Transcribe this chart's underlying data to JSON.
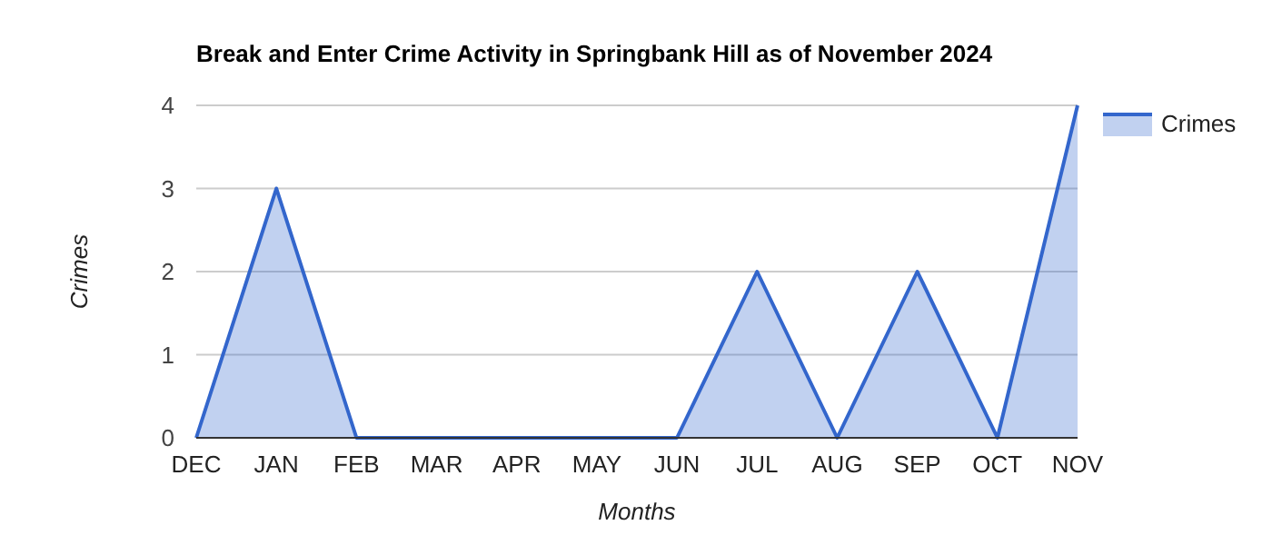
{
  "chart_data": {
    "type": "area",
    "title": "Break and Enter Crime Activity in Springbank Hill as of November 2024",
    "xlabel": "Months",
    "ylabel": "Crimes",
    "categories": [
      "DEC",
      "JAN",
      "FEB",
      "MAR",
      "APR",
      "MAY",
      "JUN",
      "JUL",
      "AUG",
      "SEP",
      "OCT",
      "NOV"
    ],
    "series": [
      {
        "name": "Crimes",
        "color": "#3366cc",
        "values": [
          0,
          3,
          0,
          0,
          0,
          0,
          0,
          2,
          0,
          2,
          0,
          4
        ]
      }
    ],
    "ylim": [
      0,
      4
    ],
    "yticks": [
      0,
      1,
      2,
      3,
      4
    ],
    "grid": "y",
    "legend": "top right"
  }
}
